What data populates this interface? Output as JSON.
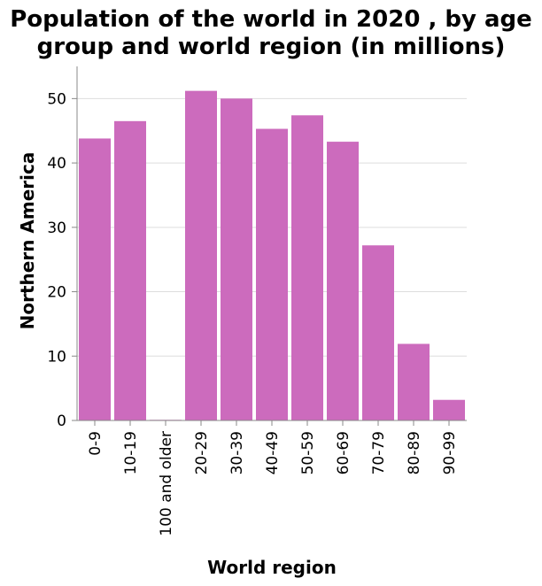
{
  "chart_data": {
    "type": "bar",
    "title_lines": [
      "Population of the world in 2020 , by age",
      "group and world region (in millions)"
    ],
    "xlabel": "World region",
    "ylabel": "Northern America",
    "categories": [
      "0-9",
      "10-19",
      "100 and older",
      "20-29",
      "30-39",
      "40-49",
      "50-59",
      "60-69",
      "70-79",
      "80-89",
      "90-99"
    ],
    "values": [
      43.8,
      46.5,
      0.1,
      51.2,
      50.0,
      45.3,
      47.4,
      43.3,
      27.2,
      11.9,
      3.2
    ],
    "ylim": [
      0,
      55
    ],
    "yticks": [
      0,
      10,
      20,
      30,
      40,
      50
    ],
    "grid": true,
    "bar_color": "#cc6bbd"
  }
}
